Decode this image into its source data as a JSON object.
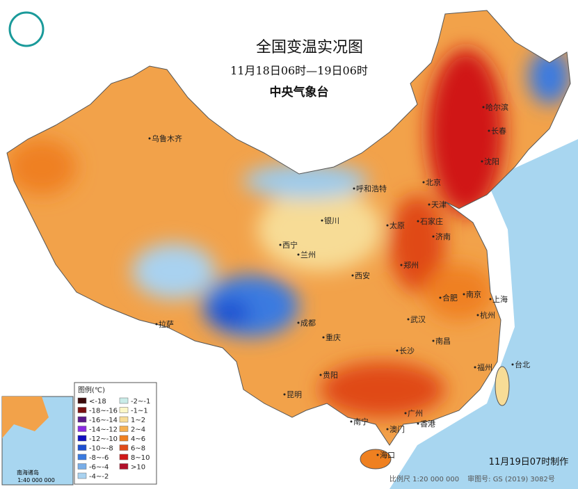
{
  "header": {
    "title": "全国变温实况图",
    "subtitle": "11月18日06时—19日06时",
    "agency": "中央气象台"
  },
  "cities": [
    "乌鲁木齐",
    "哈尔滨",
    "长春",
    "沈阳",
    "北京",
    "天津",
    "呼和浩特",
    "银川",
    "太原",
    "石家庄",
    "济南",
    "西宁",
    "兰州",
    "郑州",
    "西安",
    "南京",
    "合肥",
    "上海",
    "杭州",
    "拉萨",
    "成都",
    "武汉",
    "重庆",
    "长沙",
    "南昌",
    "台北",
    "福州",
    "贵阳",
    "昆明",
    "广州",
    "南宁",
    "澳门",
    "香港",
    "海口"
  ],
  "legend": {
    "title": "图例(℃)",
    "items": [
      {
        "label": "<-18",
        "color": "#3b0a0a"
      },
      {
        "label": "-18~-16",
        "color": "#7a1010"
      },
      {
        "label": "-16~-14",
        "color": "#5a1a8a"
      },
      {
        "label": "-14~-12",
        "color": "#8a2be2"
      },
      {
        "label": "-12~-10",
        "color": "#1010c0"
      },
      {
        "label": "-10~-8",
        "color": "#1e4fd0"
      },
      {
        "label": "-8~-6",
        "color": "#3a7ae0"
      },
      {
        "label": "-6~-4",
        "color": "#79aee8"
      },
      {
        "label": "-4~-2",
        "color": "#a9d2f0"
      },
      {
        "label": "-2~-1",
        "color": "#c9ece8"
      },
      {
        "label": "-1~1",
        "color": "#fbf7c8"
      },
      {
        "label": "1~2",
        "color": "#f7dc96"
      },
      {
        "label": "2~4",
        "color": "#f5b050"
      },
      {
        "label": "4~6",
        "color": "#ef8020"
      },
      {
        "label": "6~8",
        "color": "#e04a18"
      },
      {
        "label": "8~10",
        "color": "#d01818"
      },
      {
        "label": ">10",
        "color": "#b0102a"
      }
    ]
  },
  "inset": {
    "title": "南海诸岛",
    "scale": "1:40 000 000"
  },
  "footer": {
    "made": "11月19日07时制作",
    "scale": "比例尺 1:20 000 000",
    "approval": "审图号: GS (2019) 3082号"
  }
}
